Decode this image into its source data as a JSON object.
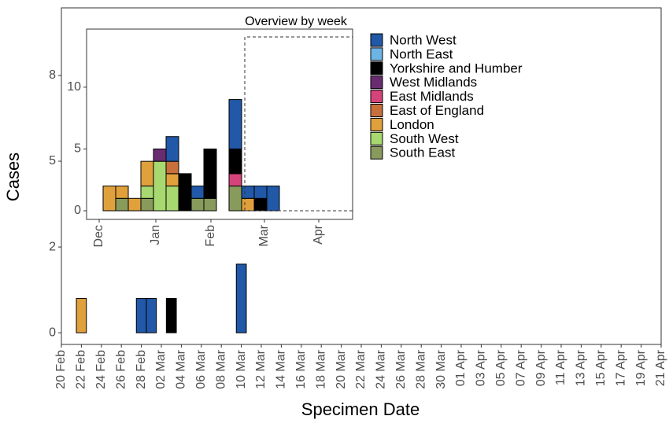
{
  "chart_data": [
    {
      "type": "stacked_bar",
      "xlabel": "Specimen Date",
      "ylabel": "Cases",
      "categories": [
        "20 Feb",
        null,
        "22 Feb",
        null,
        "24 Feb",
        null,
        "26 Feb",
        null,
        "28 Feb",
        null,
        "02 Mar",
        null,
        "04 Mar",
        null,
        "06 Mar",
        null,
        "08 Mar",
        null,
        "10 Mar",
        null,
        "12 Mar",
        null,
        "14 Mar",
        null,
        "16 Mar",
        null,
        "18 Mar",
        null,
        "20 Mar",
        null,
        "22 Mar",
        null,
        "24 Mar",
        null,
        "26 Mar",
        null,
        "28 Mar",
        null,
        "30 Mar",
        null,
        "01 Apr",
        null,
        "03 Apr",
        null,
        "05 Apr",
        null,
        "07 Apr",
        null,
        "09 Apr",
        null,
        "11 Apr",
        null,
        "13 Apr",
        null,
        "15 Apr",
        null,
        "17 Apr",
        null,
        "19 Apr",
        null,
        "21 Apr"
      ],
      "series": [
        {
          "name": "London",
          "color": "#e0a03c",
          "values": [
            0,
            0,
            1,
            0,
            0,
            0,
            0,
            0,
            0,
            0,
            0,
            0,
            0,
            0,
            0,
            0,
            0,
            0,
            0,
            0,
            0,
            0,
            0,
            0,
            0,
            0,
            0,
            0,
            0,
            0,
            0,
            0,
            0,
            0,
            0,
            0,
            0,
            0,
            0,
            0,
            0,
            0,
            0,
            0,
            0,
            0,
            0,
            0,
            0,
            0,
            0,
            0,
            0,
            0,
            0,
            0,
            0,
            0,
            0,
            0,
            0
          ]
        },
        {
          "name": "Yorkshire and Humber",
          "color": "#000000",
          "values": [
            0,
            0,
            0,
            0,
            0,
            0,
            0,
            0,
            0,
            0,
            0,
            1,
            0,
            0,
            0,
            0,
            0,
            0,
            0,
            0,
            0,
            0,
            0,
            0,
            0,
            0,
            0,
            0,
            0,
            0,
            0,
            0,
            0,
            0,
            0,
            0,
            0,
            0,
            0,
            0,
            0,
            0,
            0,
            0,
            0,
            0,
            0,
            0,
            0,
            0,
            0,
            0,
            0,
            0,
            0,
            0,
            0,
            0,
            0,
            0,
            0
          ]
        },
        {
          "name": "North West",
          "color": "#2158a8",
          "values": [
            0,
            0,
            0,
            0,
            0,
            0,
            0,
            0,
            1,
            1,
            0,
            0,
            0,
            0,
            0,
            0,
            0,
            0,
            2,
            0,
            0,
            0,
            0,
            0,
            0,
            0,
            0,
            0,
            0,
            0,
            0,
            0,
            0,
            0,
            0,
            0,
            0,
            0,
            0,
            0,
            0,
            0,
            0,
            0,
            0,
            0,
            0,
            0,
            0,
            0,
            0,
            0,
            0,
            0,
            0,
            0,
            0,
            0,
            0,
            0,
            0
          ]
        }
      ],
      "ylim": [
        -0.34,
        9.47
      ],
      "yticks": [
        0,
        {
          "value": 2.5,
          "label": "2"
        },
        5,
        {
          "value": 7.5,
          "label": "8"
        }
      ]
    },
    {
      "type": "stacked_bar",
      "title": "Overview by week",
      "categories": [
        null,
        null,
        null,
        null,
        null,
        null,
        null,
        null,
        null,
        null,
        null,
        null,
        null,
        null
      ],
      "xtick_labels": [
        "Dec",
        "Jan",
        "Feb",
        "Mar",
        "Apr"
      ],
      "series": [
        {
          "name": "South East",
          "color": "#889a5c",
          "values": [
            0,
            1,
            0,
            1,
            0,
            0,
            0,
            1,
            1,
            0,
            2,
            0,
            0,
            0
          ]
        },
        {
          "name": "South West",
          "color": "#a8d870",
          "values": [
            0,
            0,
            0,
            1,
            4,
            2,
            0,
            0,
            0,
            0,
            0,
            0,
            0,
            0
          ]
        },
        {
          "name": "London",
          "color": "#e0a03c",
          "values": [
            2,
            1,
            1,
            2,
            0,
            1,
            0,
            0,
            0,
            0,
            0,
            1,
            0,
            0
          ]
        },
        {
          "name": "East of England",
          "color": "#c8703c",
          "values": [
            0,
            0,
            0,
            0,
            0,
            1,
            0,
            0,
            0,
            0,
            0,
            0,
            0,
            0
          ]
        },
        {
          "name": "East Midlands",
          "color": "#d4447a",
          "values": [
            0,
            0,
            0,
            0,
            0,
            0,
            0,
            0,
            0,
            0,
            1,
            0,
            0,
            0
          ]
        },
        {
          "name": "West Midlands",
          "color": "#6a2c70",
          "values": [
            0,
            0,
            0,
            0,
            1,
            0,
            0,
            0,
            0,
            0,
            0,
            0,
            0,
            0
          ]
        },
        {
          "name": "Yorkshire and Humber",
          "color": "#000000",
          "values": [
            0,
            0,
            0,
            0,
            0,
            0,
            3,
            0,
            4,
            0,
            2,
            0,
            1,
            0
          ]
        },
        {
          "name": "North East",
          "color": "#6cb4e4",
          "values": [
            0,
            0,
            0,
            0,
            0,
            0,
            0,
            0,
            0,
            0,
            0,
            0,
            0,
            0
          ]
        },
        {
          "name": "North West",
          "color": "#2158a8",
          "values": [
            0,
            0,
            0,
            0,
            0,
            2,
            0,
            1,
            0,
            0,
            4,
            1,
            1,
            2
          ]
        }
      ],
      "ylim": [
        -0.7,
        14.7
      ],
      "yticks": [
        0,
        5,
        10
      ]
    }
  ]
}
